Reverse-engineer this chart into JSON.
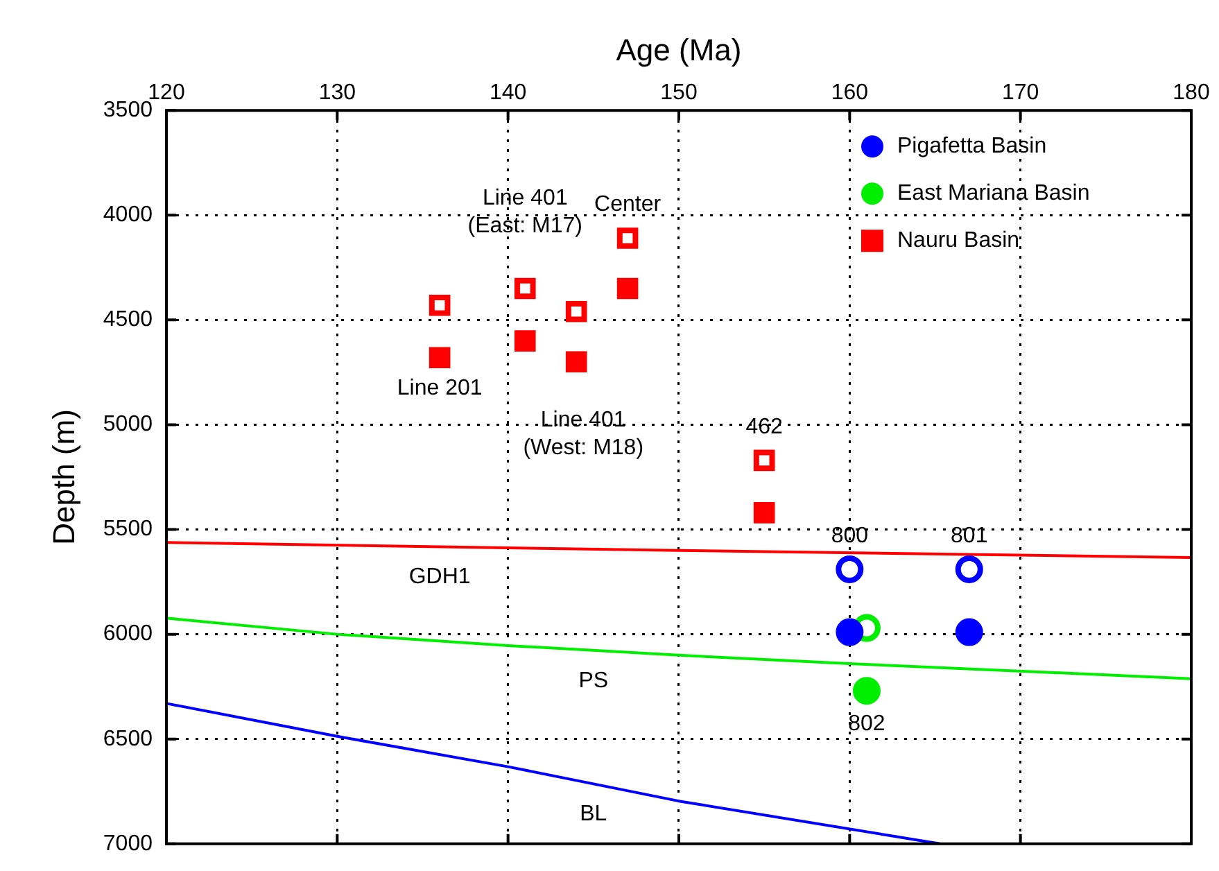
{
  "chart_data": {
    "type": "scatter",
    "xlabel": "Age (Ma)",
    "ylabel": "Depth (m)",
    "xlim": [
      120,
      180
    ],
    "xticks": [
      120,
      130,
      140,
      150,
      160,
      170,
      180
    ],
    "ylim": [
      7000,
      3500
    ],
    "yticks": [
      3500,
      4000,
      4500,
      5000,
      5500,
      6000,
      6500,
      7000
    ],
    "grid": true,
    "legend": "top right",
    "series": [
      {
        "name": "Pigafetta Basin",
        "color": "#0000ff",
        "marker": "circle",
        "x": [
          160,
          167
        ],
        "values": [
          5990,
          5990
        ]
      },
      {
        "color": "#0000ff",
        "marker": "circle",
        "x": [
          160,
          167
        ],
        "values": [
          5690,
          5690
        ]
      },
      {
        "name": "East Mariana Basin",
        "color": "#00ee00",
        "marker": "circle",
        "x": [
          161
        ],
        "values": [
          6270
        ]
      },
      {
        "color": "#00ee00",
        "marker": "circle",
        "x": [
          161
        ],
        "values": [
          5970
        ]
      },
      {
        "name": "Nauru Basin",
        "color": "#ff0000",
        "marker": "square",
        "x": [
          136,
          141,
          144,
          147,
          155
        ],
        "values": [
          4680,
          4600,
          4700,
          4350,
          5420
        ]
      },
      {
        "color": "#ff0000",
        "marker": "square",
        "x": [
          136,
          141,
          144,
          147,
          155
        ],
        "values": [
          4430,
          4350,
          4460,
          4110,
          5170
        ]
      },
      {
        "type": "line",
        "color": "#ff0000",
        "marker": "none",
        "x": [
          120,
          150,
          180
        ],
        "values": [
          5562,
          5600,
          5634
        ]
      },
      {
        "type": "line",
        "color": "#00ee00",
        "marker": "none",
        "x": [
          120,
          130,
          140,
          150,
          160,
          180
        ],
        "values": [
          5923,
          6000,
          6054,
          6100,
          6140,
          6212
        ]
      },
      {
        "type": "line",
        "color": "#0000ff",
        "marker": "none",
        "x": [
          120,
          130,
          140,
          150,
          165.3
        ],
        "values": [
          6330,
          6487,
          6632,
          6796,
          7000
        ]
      }
    ],
    "annotations": [
      {
        "text": "Line 201",
        "x": 136,
        "y": 4680
      },
      {
        "text": "Line 401\n(East: M17)",
        "x": 141,
        "y": 4350
      },
      {
        "text": "Line 401\n(West: M18)",
        "x": 144,
        "y": 4700
      },
      {
        "text": "Center",
        "x": 147,
        "y": 4110
      },
      {
        "text": "462",
        "x": 155,
        "y": 5170
      },
      {
        "text": "800",
        "x": 160,
        "y": 5690
      },
      {
        "text": "801",
        "x": 167,
        "y": 5690
      },
      {
        "text": "802",
        "x": 161,
        "y": 6270
      },
      {
        "text": "GDH1",
        "x": 136,
        "y": 5582
      },
      {
        "text": "PS",
        "x": 145,
        "y": 6077
      },
      {
        "text": "BL",
        "x": 145,
        "y": 6714
      }
    ]
  }
}
